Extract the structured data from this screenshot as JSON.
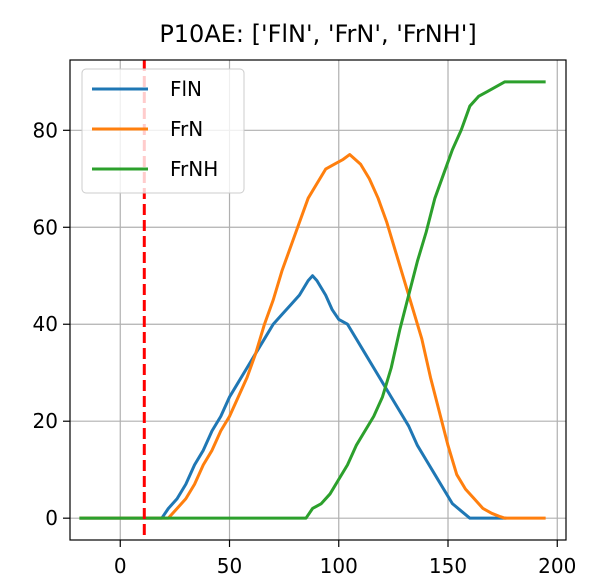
{
  "chart_data": {
    "type": "line",
    "title": "P10AE: ['FlN', 'FrN', 'FrNH']",
    "xlabel": "",
    "ylabel": "",
    "xlim": [
      -23,
      204
    ],
    "ylim": [
      -4.5,
      94.5
    ],
    "xticks": [
      0,
      50,
      100,
      150,
      200
    ],
    "yticks": [
      0,
      20,
      40,
      60,
      80
    ],
    "grid": true,
    "legend_position": "top-left",
    "vline": {
      "x": 11,
      "color": "#ff0000",
      "style": "dashed"
    },
    "series": [
      {
        "name": "FlN",
        "color": "#1f77b4",
        "x": [
          -18,
          19,
          22,
          26,
          30,
          34,
          38,
          42,
          46,
          50,
          54,
          58,
          62,
          66,
          70,
          74,
          78,
          82,
          86,
          88,
          90,
          94,
          97,
          100,
          104,
          108,
          112,
          116,
          120,
          124,
          128,
          132,
          136,
          140,
          144,
          148,
          152,
          156,
          160,
          170,
          176
        ],
        "y": [
          0,
          0,
          2,
          4,
          7,
          11,
          14,
          18,
          21,
          25,
          28,
          31,
          34,
          37,
          40,
          42,
          44,
          46,
          49,
          50,
          49,
          46,
          43,
          41,
          40,
          37,
          34,
          31,
          28,
          25,
          22,
          19,
          15,
          12,
          9,
          6,
          3,
          1.5,
          0,
          0,
          0
        ]
      },
      {
        "name": "FrN",
        "color": "#ff7f0e",
        "x": [
          -18,
          22,
          26,
          30,
          34,
          38,
          42,
          46,
          50,
          54,
          58,
          62,
          66,
          70,
          74,
          78,
          82,
          86,
          90,
          94,
          98,
          102,
          105,
          110,
          114,
          118,
          122,
          126,
          130,
          134,
          138,
          142,
          146,
          150,
          154,
          158,
          162,
          166,
          170,
          174,
          176,
          194
        ],
        "y": [
          0,
          0,
          2,
          4,
          7,
          11,
          14,
          18,
          21,
          25,
          29,
          34,
          40,
          45,
          51,
          56,
          61,
          66,
          69,
          72,
          73,
          74,
          75,
          73,
          70,
          66,
          61,
          55,
          49,
          43,
          37,
          29,
          22,
          15,
          9,
          6,
          4,
          2,
          1,
          0.3,
          0,
          0
        ]
      },
      {
        "name": "FrNH",
        "color": "#2ca02c",
        "x": [
          -18,
          85,
          88,
          92,
          96,
          100,
          104,
          108,
          112,
          116,
          120,
          124,
          128,
          132,
          136,
          140,
          144,
          148,
          152,
          156,
          160,
          164,
          168,
          172,
          176,
          194
        ],
        "y": [
          0,
          0,
          2,
          3,
          5,
          8,
          11,
          15,
          18,
          21,
          25,
          31,
          39,
          46,
          53,
          59,
          66,
          71,
          76,
          80,
          85,
          87,
          88,
          89,
          90,
          90
        ]
      }
    ]
  }
}
